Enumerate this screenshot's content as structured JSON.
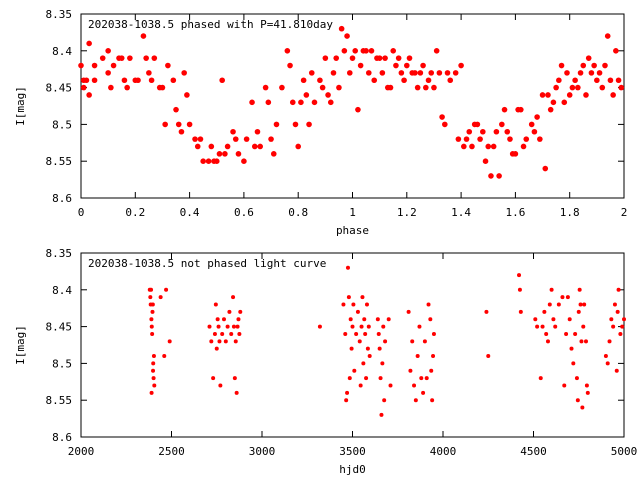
{
  "chart_data": [
    {
      "type": "scatter",
      "title": "202038-1038.5 phased with P=41.810day",
      "xlabel": "phase",
      "ylabel": "I[mag]",
      "xlim": [
        0,
        2
      ],
      "ylim": [
        8.35,
        8.6
      ],
      "y_inverted": true,
      "xticks": [
        "0",
        "0.2",
        "0.4",
        "0.6",
        "0.8",
        "1",
        "1.2",
        "1.4",
        "1.6",
        "1.8",
        "2"
      ],
      "xtick_values": [
        0,
        0.2,
        0.4,
        0.6,
        0.8,
        1,
        1.2,
        1.4,
        1.6,
        1.8,
        2
      ],
      "yticks": [
        "8.35",
        "8.4",
        "8.45",
        "8.5",
        "8.55",
        "8.6"
      ],
      "ytick_values": [
        8.35,
        8.4,
        8.45,
        8.5,
        8.55,
        8.6
      ],
      "marker_color": "#ff0000",
      "marker_shape": "filled-circle",
      "points": [
        [
          0.0,
          8.42
        ],
        [
          0.01,
          8.45
        ],
        [
          0.01,
          8.44
        ],
        [
          0.02,
          8.44
        ],
        [
          0.03,
          8.46
        ],
        [
          0.03,
          8.39
        ],
        [
          0.05,
          8.44
        ],
        [
          0.05,
          8.42
        ],
        [
          0.08,
          8.41
        ],
        [
          0.1,
          8.4
        ],
        [
          0.1,
          8.43
        ],
        [
          0.11,
          8.45
        ],
        [
          0.12,
          8.42
        ],
        [
          0.14,
          8.41
        ],
        [
          0.15,
          8.41
        ],
        [
          0.16,
          8.44
        ],
        [
          0.17,
          8.45
        ],
        [
          0.18,
          8.41
        ],
        [
          0.2,
          8.44
        ],
        [
          0.21,
          8.44
        ],
        [
          0.23,
          8.38
        ],
        [
          0.24,
          8.41
        ],
        [
          0.25,
          8.43
        ],
        [
          0.26,
          8.44
        ],
        [
          0.27,
          8.41
        ],
        [
          0.29,
          8.45
        ],
        [
          0.3,
          8.45
        ],
        [
          0.31,
          8.5
        ],
        [
          0.32,
          8.42
        ],
        [
          0.34,
          8.44
        ],
        [
          0.35,
          8.48
        ],
        [
          0.36,
          8.5
        ],
        [
          0.37,
          8.51
        ],
        [
          0.38,
          8.43
        ],
        [
          0.39,
          8.46
        ],
        [
          0.4,
          8.5
        ],
        [
          0.42,
          8.52
        ],
        [
          0.43,
          8.53
        ],
        [
          0.44,
          8.52
        ],
        [
          0.45,
          8.55
        ],
        [
          0.47,
          8.55
        ],
        [
          0.48,
          8.53
        ],
        [
          0.49,
          8.55
        ],
        [
          0.5,
          8.55
        ],
        [
          0.51,
          8.54
        ],
        [
          0.52,
          8.44
        ],
        [
          0.53,
          8.54
        ],
        [
          0.54,
          8.53
        ],
        [
          0.56,
          8.51
        ],
        [
          0.57,
          8.52
        ],
        [
          0.58,
          8.54
        ],
        [
          0.6,
          8.55
        ],
        [
          0.61,
          8.52
        ],
        [
          0.63,
          8.47
        ],
        [
          0.64,
          8.53
        ],
        [
          0.65,
          8.51
        ],
        [
          0.66,
          8.53
        ],
        [
          0.68,
          8.45
        ],
        [
          0.69,
          8.47
        ],
        [
          0.7,
          8.52
        ],
        [
          0.71,
          8.54
        ],
        [
          0.72,
          8.5
        ],
        [
          0.74,
          8.45
        ],
        [
          0.76,
          8.4
        ],
        [
          0.77,
          8.42
        ],
        [
          0.78,
          8.47
        ],
        [
          0.79,
          8.5
        ],
        [
          0.8,
          8.53
        ],
        [
          0.81,
          8.47
        ],
        [
          0.82,
          8.44
        ],
        [
          0.83,
          8.46
        ],
        [
          0.84,
          8.5
        ],
        [
          0.85,
          8.43
        ],
        [
          0.86,
          8.47
        ],
        [
          0.88,
          8.44
        ],
        [
          0.89,
          8.45
        ],
        [
          0.9,
          8.41
        ],
        [
          0.91,
          8.46
        ],
        [
          0.92,
          8.47
        ],
        [
          0.93,
          8.43
        ],
        [
          0.94,
          8.41
        ],
        [
          0.95,
          8.45
        ],
        [
          0.96,
          8.37
        ],
        [
          0.97,
          8.4
        ],
        [
          0.98,
          8.38
        ],
        [
          0.99,
          8.43
        ],
        [
          1.0,
          8.41
        ],
        [
          1.01,
          8.4
        ],
        [
          1.02,
          8.48
        ],
        [
          1.03,
          8.42
        ],
        [
          1.04,
          8.4
        ],
        [
          1.05,
          8.4
        ],
        [
          1.06,
          8.43
        ],
        [
          1.07,
          8.4
        ],
        [
          1.08,
          8.44
        ],
        [
          1.09,
          8.41
        ],
        [
          1.1,
          8.41
        ],
        [
          1.11,
          8.43
        ],
        [
          1.12,
          8.41
        ],
        [
          1.13,
          8.45
        ],
        [
          1.14,
          8.45
        ],
        [
          1.15,
          8.4
        ],
        [
          1.16,
          8.42
        ],
        [
          1.17,
          8.41
        ],
        [
          1.18,
          8.43
        ],
        [
          1.19,
          8.44
        ],
        [
          1.2,
          8.42
        ],
        [
          1.21,
          8.41
        ],
        [
          1.22,
          8.43
        ],
        [
          1.23,
          8.43
        ],
        [
          1.24,
          8.45
        ],
        [
          1.25,
          8.43
        ],
        [
          1.26,
          8.42
        ],
        [
          1.27,
          8.45
        ],
        [
          1.28,
          8.44
        ],
        [
          1.29,
          8.43
        ],
        [
          1.3,
          8.45
        ],
        [
          1.31,
          8.4
        ],
        [
          1.32,
          8.43
        ],
        [
          1.33,
          8.49
        ],
        [
          1.34,
          8.5
        ],
        [
          1.35,
          8.43
        ],
        [
          1.36,
          8.44
        ],
        [
          1.38,
          8.43
        ],
        [
          1.39,
          8.52
        ],
        [
          1.4,
          8.42
        ],
        [
          1.41,
          8.53
        ],
        [
          1.42,
          8.52
        ],
        [
          1.43,
          8.51
        ],
        [
          1.44,
          8.53
        ],
        [
          1.45,
          8.5
        ],
        [
          1.46,
          8.5
        ],
        [
          1.47,
          8.52
        ],
        [
          1.48,
          8.51
        ],
        [
          1.49,
          8.55
        ],
        [
          1.5,
          8.53
        ],
        [
          1.51,
          8.57
        ],
        [
          1.52,
          8.53
        ],
        [
          1.53,
          8.51
        ],
        [
          1.54,
          8.57
        ],
        [
          1.55,
          8.5
        ],
        [
          1.56,
          8.48
        ],
        [
          1.57,
          8.51
        ],
        [
          1.58,
          8.52
        ],
        [
          1.59,
          8.54
        ],
        [
          1.6,
          8.54
        ],
        [
          1.61,
          8.48
        ],
        [
          1.62,
          8.48
        ],
        [
          1.63,
          8.53
        ],
        [
          1.64,
          8.52
        ],
        [
          1.66,
          8.5
        ],
        [
          1.67,
          8.51
        ],
        [
          1.68,
          8.49
        ],
        [
          1.69,
          8.52
        ],
        [
          1.7,
          8.46
        ],
        [
          1.71,
          8.56
        ],
        [
          1.72,
          8.46
        ],
        [
          1.73,
          8.48
        ],
        [
          1.74,
          8.47
        ],
        [
          1.75,
          8.45
        ],
        [
          1.76,
          8.44
        ],
        [
          1.77,
          8.42
        ],
        [
          1.78,
          8.47
        ],
        [
          1.79,
          8.43
        ],
        [
          1.8,
          8.46
        ],
        [
          1.81,
          8.45
        ],
        [
          1.82,
          8.44
        ],
        [
          1.83,
          8.45
        ],
        [
          1.84,
          8.43
        ],
        [
          1.85,
          8.42
        ],
        [
          1.86,
          8.46
        ],
        [
          1.87,
          8.41
        ],
        [
          1.88,
          8.43
        ],
        [
          1.89,
          8.42
        ],
        [
          1.9,
          8.44
        ],
        [
          1.91,
          8.43
        ],
        [
          1.92,
          8.45
        ],
        [
          1.93,
          8.42
        ],
        [
          1.94,
          8.38
        ],
        [
          1.95,
          8.44
        ],
        [
          1.96,
          8.46
        ],
        [
          1.97,
          8.4
        ],
        [
          1.98,
          8.44
        ],
        [
          1.99,
          8.45
        ]
      ]
    },
    {
      "type": "scatter",
      "title": "202038-1038.5 not phased light curve",
      "xlabel": "hjd0",
      "ylabel": "I[mag]",
      "xlim": [
        2000,
        5000
      ],
      "ylim": [
        8.35,
        8.6
      ],
      "y_inverted": true,
      "xticks": [
        "2000",
        "2500",
        "3000",
        "3500",
        "4000",
        "4500",
        "5000"
      ],
      "xtick_values": [
        2000,
        2500,
        3000,
        3500,
        4000,
        4500,
        5000
      ],
      "yticks": [
        "8.35",
        "8.4",
        "8.45",
        "8.5",
        "8.55",
        "8.6"
      ],
      "ytick_values": [
        8.35,
        8.4,
        8.45,
        8.5,
        8.55,
        8.6
      ],
      "marker_color": "#ff0000",
      "marker_shape": "filled-circle",
      "points": [
        [
          2380,
          8.4
        ],
        [
          2383,
          8.41
        ],
        [
          2385,
          8.42
        ],
        [
          2387,
          8.4
        ],
        [
          2389,
          8.44
        ],
        [
          2391,
          8.45
        ],
        [
          2393,
          8.46
        ],
        [
          2395,
          8.43
        ],
        [
          2397,
          8.42
        ],
        [
          2399,
          8.5
        ],
        [
          2401,
          8.52
        ],
        [
          2403,
          8.49
        ],
        [
          2405,
          8.53
        ],
        [
          2390,
          8.54
        ],
        [
          2398,
          8.51
        ],
        [
          2440,
          8.41
        ],
        [
          2460,
          8.49
        ],
        [
          2470,
          8.4
        ],
        [
          2490,
          8.47
        ],
        [
          2710,
          8.45
        ],
        [
          2720,
          8.47
        ],
        [
          2730,
          8.52
        ],
        [
          2740,
          8.46
        ],
        [
          2745,
          8.42
        ],
        [
          2750,
          8.48
        ],
        [
          2755,
          8.44
        ],
        [
          2760,
          8.45
        ],
        [
          2765,
          8.47
        ],
        [
          2770,
          8.53
        ],
        [
          2780,
          8.46
        ],
        [
          2790,
          8.44
        ],
        [
          2800,
          8.47
        ],
        [
          2810,
          8.45
        ],
        [
          2820,
          8.43
        ],
        [
          2830,
          8.46
        ],
        [
          2840,
          8.41
        ],
        [
          2845,
          8.45
        ],
        [
          2850,
          8.52
        ],
        [
          2855,
          8.47
        ],
        [
          2860,
          8.54
        ],
        [
          2865,
          8.45
        ],
        [
          2870,
          8.44
        ],
        [
          2875,
          8.46
        ],
        [
          2880,
          8.43
        ],
        [
          3320,
          8.45
        ],
        [
          3450,
          8.42
        ],
        [
          3460,
          8.46
        ],
        [
          3465,
          8.55
        ],
        [
          3470,
          8.54
        ],
        [
          3475,
          8.37
        ],
        [
          3480,
          8.41
        ],
        [
          3485,
          8.52
        ],
        [
          3490,
          8.44
        ],
        [
          3495,
          8.48
        ],
        [
          3500,
          8.45
        ],
        [
          3505,
          8.42
        ],
        [
          3510,
          8.51
        ],
        [
          3520,
          8.46
        ],
        [
          3530,
          8.43
        ],
        [
          3540,
          8.47
        ],
        [
          3545,
          8.53
        ],
        [
          3550,
          8.45
        ],
        [
          3555,
          8.41
        ],
        [
          3560,
          8.5
        ],
        [
          3565,
          8.44
        ],
        [
          3570,
          8.46
        ],
        [
          3575,
          8.52
        ],
        [
          3580,
          8.42
        ],
        [
          3585,
          8.48
        ],
        [
          3590,
          8.45
        ],
        [
          3595,
          8.49
        ],
        [
          3640,
          8.44
        ],
        [
          3645,
          8.46
        ],
        [
          3650,
          8.48
        ],
        [
          3655,
          8.52
        ],
        [
          3660,
          8.57
        ],
        [
          3665,
          8.5
        ],
        [
          3670,
          8.45
        ],
        [
          3675,
          8.55
        ],
        [
          3680,
          8.47
        ],
        [
          3700,
          8.44
        ],
        [
          3710,
          8.53
        ],
        [
          3810,
          8.43
        ],
        [
          3820,
          8.51
        ],
        [
          3830,
          8.47
        ],
        [
          3840,
          8.53
        ],
        [
          3850,
          8.55
        ],
        [
          3860,
          8.49
        ],
        [
          3870,
          8.45
        ],
        [
          3880,
          8.52
        ],
        [
          3890,
          8.54
        ],
        [
          3900,
          8.47
        ],
        [
          3910,
          8.52
        ],
        [
          3920,
          8.42
        ],
        [
          3930,
          8.44
        ],
        [
          3935,
          8.51
        ],
        [
          3940,
          8.55
        ],
        [
          3945,
          8.49
        ],
        [
          3950,
          8.46
        ],
        [
          4240,
          8.43
        ],
        [
          4250,
          8.49
        ],
        [
          4420,
          8.38
        ],
        [
          4425,
          8.4
        ],
        [
          4430,
          8.43
        ],
        [
          4510,
          8.44
        ],
        [
          4520,
          8.45
        ],
        [
          4540,
          8.52
        ],
        [
          4550,
          8.45
        ],
        [
          4560,
          8.43
        ],
        [
          4570,
          8.46
        ],
        [
          4580,
          8.47
        ],
        [
          4590,
          8.42
        ],
        [
          4600,
          8.4
        ],
        [
          4610,
          8.44
        ],
        [
          4620,
          8.45
        ],
        [
          4640,
          8.42
        ],
        [
          4660,
          8.41
        ],
        [
          4670,
          8.53
        ],
        [
          4680,
          8.46
        ],
        [
          4690,
          8.41
        ],
        [
          4700,
          8.44
        ],
        [
          4710,
          8.48
        ],
        [
          4720,
          8.5
        ],
        [
          4730,
          8.46
        ],
        [
          4740,
          8.52
        ],
        [
          4745,
          8.55
        ],
        [
          4750,
          8.43
        ],
        [
          4755,
          8.4
        ],
        [
          4760,
          8.42
        ],
        [
          4765,
          8.47
        ],
        [
          4770,
          8.56
        ],
        [
          4775,
          8.45
        ],
        [
          4780,
          8.42
        ],
        [
          4790,
          8.47
        ],
        [
          4795,
          8.53
        ],
        [
          4800,
          8.54
        ],
        [
          4900,
          8.49
        ],
        [
          4910,
          8.5
        ],
        [
          4920,
          8.47
        ],
        [
          4930,
          8.44
        ],
        [
          4940,
          8.45
        ],
        [
          4950,
          8.42
        ],
        [
          4960,
          8.51
        ],
        [
          4965,
          8.43
        ],
        [
          4970,
          8.4
        ],
        [
          4980,
          8.46
        ],
        [
          4990,
          8.45
        ],
        [
          5000,
          8.44
        ]
      ]
    }
  ]
}
